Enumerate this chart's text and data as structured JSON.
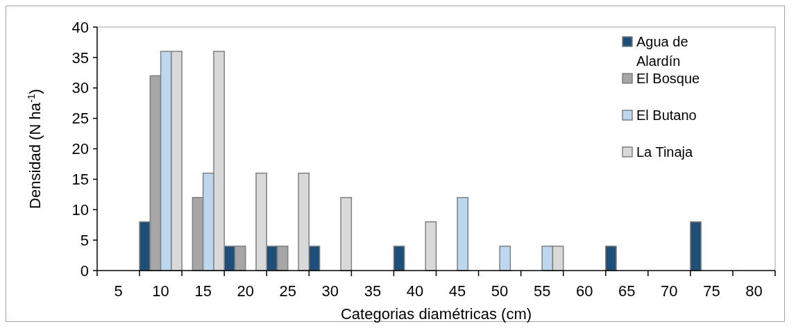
{
  "chart_data": {
    "type": "bar",
    "xlabel": "Categorias diamétricas (cm)",
    "ylabel": "Densidad (N ha$^{-1}$)",
    "categories": [
      "5",
      "10",
      "15",
      "20",
      "25",
      "30",
      "35",
      "40",
      "45",
      "50",
      "55",
      "60",
      "65",
      "70",
      "75",
      "80"
    ],
    "series": [
      {
        "name": "Agua de Alardín",
        "color": "#1f4e79",
        "values": [
          0,
          8,
          0,
          4,
          4,
          4,
          0,
          4,
          0,
          0,
          0,
          0,
          4,
          0,
          8,
          0
        ]
      },
      {
        "name": "El Bosque",
        "color": "#a6a6a6",
        "values": [
          0,
          32,
          12,
          4,
          4,
          0,
          0,
          0,
          0,
          0,
          0,
          0,
          0,
          0,
          0,
          0
        ]
      },
      {
        "name": "El Butano",
        "color": "#bdd7ee",
        "values": [
          0,
          36,
          16,
          0,
          0,
          0,
          0,
          0,
          12,
          4,
          4,
          0,
          0,
          0,
          0,
          0
        ]
      },
      {
        "name": "La Tinaja",
        "color": "#d9d9d9",
        "values": [
          0,
          36,
          36,
          16,
          16,
          12,
          0,
          8,
          0,
          0,
          4,
          0,
          0,
          0,
          0,
          0
        ]
      }
    ],
    "ylim": [
      0,
      40
    ],
    "yticks": [
      0,
      5,
      10,
      15,
      20,
      25,
      30,
      35,
      40
    ],
    "legend": "top right"
  }
}
